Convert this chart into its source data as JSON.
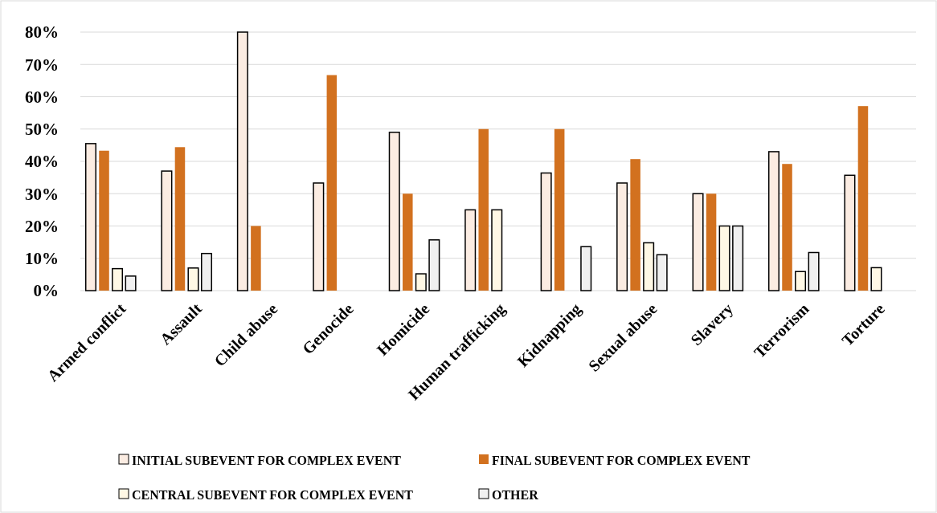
{
  "chart_data": {
    "type": "bar",
    "categories": [
      "Armed conflict",
      "Assault",
      "Child abuse",
      "Genocide",
      "Homicide",
      "Human trafficking",
      "Kidnapping",
      "Sexual abuse",
      "Slavery",
      "Terrorism",
      "Torture"
    ],
    "series": [
      {
        "name": "INITIAL SUBEVENT FOR COMPLEX EVENT",
        "color": "#fbece2",
        "values": [
          45.5,
          37,
          80,
          33.3,
          49,
          25,
          36.4,
          33.3,
          30,
          43,
          35.7
        ]
      },
      {
        "name": "FINAL SUBEVENT FOR COMPLEX EVENT",
        "color": "#d2711f",
        "values": [
          43.3,
          44.4,
          20,
          66.7,
          30,
          50,
          50,
          40.7,
          30,
          39.2,
          57.1
        ]
      },
      {
        "name": "CENTRAL SUBEVENT FOR COMPLEX EVENT",
        "color": "#fff8e5",
        "values": [
          6.8,
          7,
          null,
          null,
          5.2,
          25,
          null,
          14.8,
          20,
          5.9,
          7.1
        ]
      },
      {
        "name": "OTHER",
        "color": "#f0f0f0",
        "values": [
          4.5,
          11.5,
          null,
          null,
          15.7,
          null,
          13.6,
          11.1,
          20,
          11.8,
          null
        ]
      }
    ],
    "ylim": [
      0,
      80
    ],
    "yticks": [
      {
        "value": 0,
        "label": "0%"
      },
      {
        "value": 10,
        "label": "10%"
      },
      {
        "value": 20,
        "label": "20%"
      },
      {
        "value": 30,
        "label": "30%"
      },
      {
        "value": 40,
        "label": "40%"
      },
      {
        "value": 50,
        "label": "50%"
      },
      {
        "value": 60,
        "label": "60%"
      },
      {
        "value": 70,
        "label": "70%"
      },
      {
        "value": 80,
        "label": "80%"
      }
    ],
    "grid": "y",
    "legend": "bottom"
  }
}
